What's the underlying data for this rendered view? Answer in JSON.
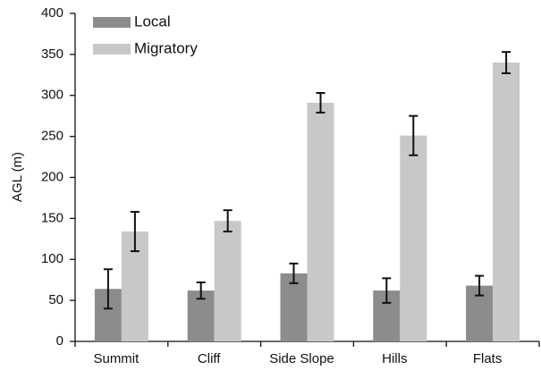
{
  "chart_data": {
    "type": "bar",
    "y_label": "AGL (m)",
    "categories": [
      "Summit",
      "Cliff",
      "Side Slope",
      "Hills",
      "Flats"
    ],
    "series": [
      {
        "name": "Local",
        "color": "#8c8c8c",
        "values": [
          64,
          62,
          83,
          62,
          68
        ],
        "errors": [
          24,
          10,
          12,
          15,
          12
        ]
      },
      {
        "name": "Migratory",
        "color": "#c8c8c8",
        "values": [
          134,
          147,
          291,
          251,
          340
        ],
        "errors": [
          24,
          13,
          12,
          24,
          13
        ]
      }
    ],
    "ylim": [
      0,
      400
    ],
    "yticks": [
      0,
      50,
      100,
      150,
      200,
      250,
      300,
      350,
      400
    ],
    "legend": "upper left"
  }
}
